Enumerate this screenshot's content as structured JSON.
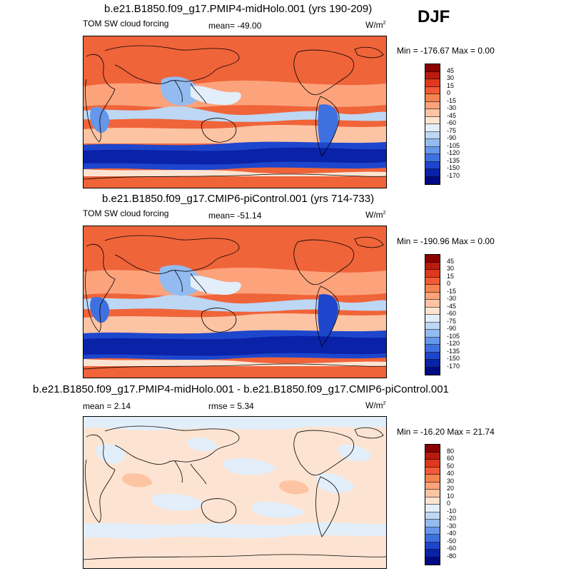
{
  "season": "DJF",
  "units_text": "W/m",
  "units_sup": "2",
  "panels": [
    {
      "title": "b.e21.B1850.f09_g17.PMIP4-midHolo.001 (yrs 190-209)",
      "left_label": "TOM SW cloud forcing",
      "center_label": "mean= -49.00",
      "minmax": "Min = -176.67 Max =   0.00",
      "colorbar": {
        "labels": [
          "45",
          "30",
          "15",
          "0",
          "-15",
          "-30",
          "-45",
          "-60",
          "-75",
          "-90",
          "-105",
          "-120",
          "-135",
          "-150",
          "-170"
        ],
        "colors": [
          "#8b0000",
          "#b81c0e",
          "#e0381c",
          "#f05a36",
          "#f58450",
          "#fca37c",
          "#fdc4a4",
          "#fde4d2",
          "#e2eefa",
          "#bdd7f5",
          "#93bbf0",
          "#6597ea",
          "#3f70e0",
          "#1d46cc",
          "#0a22a8",
          "#000a82"
        ]
      }
    },
    {
      "title": "b.e21.B1850.f09_g17.CMIP6-piControl.001 (yrs 714-733)",
      "left_label": "TOM SW cloud forcing",
      "center_label": "mean= -51.14",
      "minmax": "Min = -190.96 Max =   0.00",
      "colorbar": {
        "labels": [
          "45",
          "30",
          "15",
          "0",
          "-15",
          "-30",
          "-45",
          "-60",
          "-75",
          "-90",
          "-105",
          "-120",
          "-135",
          "-150",
          "-170"
        ],
        "colors": [
          "#8b0000",
          "#b81c0e",
          "#e0381c",
          "#f05a36",
          "#f58450",
          "#fca37c",
          "#fdc4a4",
          "#fde4d2",
          "#e2eefa",
          "#bdd7f5",
          "#93bbf0",
          "#6597ea",
          "#3f70e0",
          "#1d46cc",
          "#0a22a8",
          "#000a82"
        ]
      }
    },
    {
      "title": "b.e21.B1850.f09_g17.PMIP4-midHolo.001 - b.e21.B1850.f09_g17.CMIP6-piControl.001",
      "left_label": "mean =   2.14",
      "center_label": "rmse =   5.34",
      "minmax": "Min = -16.20 Max =  21.74",
      "colorbar": {
        "labels": [
          "80",
          "60",
          "50",
          "40",
          "30",
          "20",
          "10",
          "0",
          "-10",
          "-20",
          "-30",
          "-40",
          "-50",
          "-60",
          "-80"
        ],
        "colors": [
          "#8b0000",
          "#b81c0e",
          "#e0381c",
          "#f05a36",
          "#f58450",
          "#fca37c",
          "#fdc4a4",
          "#fde4d2",
          "#e2eefa",
          "#bdd7f5",
          "#93bbf0",
          "#6597ea",
          "#3f70e0",
          "#1d46cc",
          "#0a22a8",
          "#000a82"
        ]
      }
    }
  ]
}
